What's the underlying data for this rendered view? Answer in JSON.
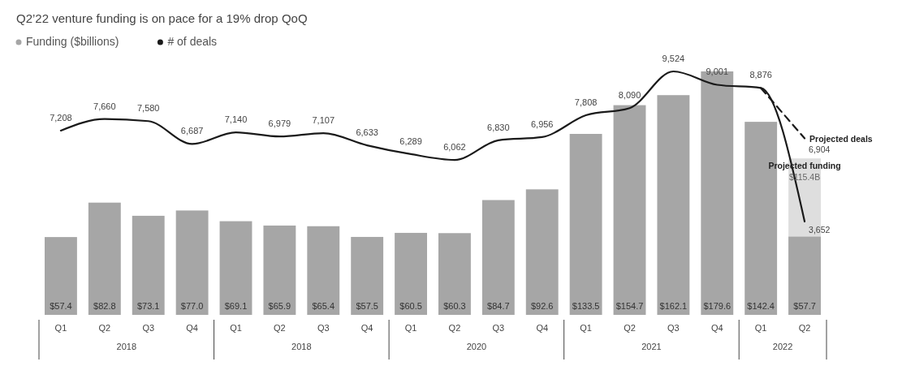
{
  "chart_data": {
    "type": "bar",
    "title": "Q2’22 venture funding is on pace for a 19% drop QoQ",
    "categories": [
      "Q1",
      "Q2",
      "Q3",
      "Q4",
      "Q1",
      "Q2",
      "Q3",
      "Q4",
      "Q1",
      "Q2",
      "Q3",
      "Q4",
      "Q1",
      "Q2",
      "Q3",
      "Q4",
      "Q1",
      "Q2"
    ],
    "annotations": [
      "2018",
      "2018",
      "2020",
      "2021",
      "2022"
    ],
    "legend": "top left",
    "tick_labels": "x",
    "series": [
      {
        "name": "Projected funding",
        "color": "#dedede",
        "values": [
          null,
          null,
          null,
          null,
          null,
          null,
          null,
          null,
          null,
          null,
          null,
          null,
          null,
          null,
          null,
          null,
          null,
          115.4
        ],
        "value_labels": [
          null,
          null,
          null,
          null,
          null,
          null,
          null,
          null,
          null,
          null,
          null,
          null,
          null,
          null,
          null,
          null,
          null,
          "$115.4B"
        ]
      },
      {
        "name": "Funding ($billions)",
        "color": "#a6a6a6",
        "values": [
          57.4,
          82.8,
          73.1,
          77.0,
          69.1,
          65.9,
          65.4,
          57.5,
          60.5,
          60.3,
          84.7,
          92.6,
          133.5,
          154.7,
          162.1,
          179.6,
          142.4,
          57.7
        ],
        "value_labels": [
          "$57.4",
          "$82.8",
          "$73.1",
          "$77.0",
          "$69.1",
          "$65.9",
          "$65.4",
          "$57.5",
          "$60.5",
          "$60.3",
          "$84.7",
          "$92.6",
          "$133.5",
          "$154.7",
          "$162.1",
          "$179.6",
          "$142.4",
          "$57.7"
        ]
      },
      {
        "name": "# of deals",
        "type": "line",
        "axis": "y2",
        "color": "#1a1a1a",
        "values": [
          7208,
          7660,
          7580,
          6687,
          7140,
          6979,
          7107,
          6633,
          6289,
          6062,
          6830,
          6956,
          7808,
          8090,
          9524,
          9001,
          8876,
          3652
        ],
        "value_labels": [
          "7,208",
          "7,660",
          "7,580",
          "6,687",
          "7,140",
          "6,979",
          "7,107",
          "6,633",
          "6,289",
          "6,062",
          "6,830",
          "6,956",
          "7,808",
          "8,090",
          "9,524",
          "9,001",
          "8,876",
          "3,652"
        ]
      },
      {
        "name": "Projected deals",
        "type": "line",
        "axis": "y2",
        "line_style": "dashed",
        "color": "#1a1a1a",
        "values": [
          null,
          null,
          null,
          null,
          null,
          null,
          null,
          null,
          null,
          null,
          null,
          null,
          null,
          null,
          null,
          null,
          8876,
          6904
        ],
        "value_labels": [
          null,
          null,
          null,
          null,
          null,
          null,
          null,
          null,
          null,
          null,
          null,
          null,
          null,
          null,
          null,
          null,
          null,
          "6,904"
        ]
      }
    ]
  }
}
